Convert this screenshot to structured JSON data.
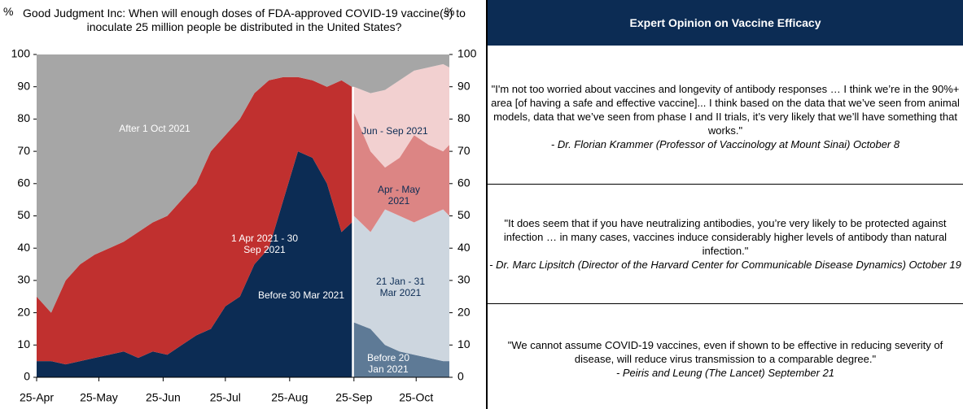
{
  "chart_data": {
    "type": "area",
    "title": "Good Judgment Inc: When will enough doses of FDA-approved COVID-19 vaccine(s) to inoculate 25 million people be distributed in the United States?",
    "y_label": "%",
    "y2_label": "%",
    "x": [
      "25-Apr",
      "2-May",
      "9-May",
      "16-May",
      "23-May",
      "30-May",
      "6-Jun",
      "13-Jun",
      "20-Jun",
      "27-Jun",
      "4-Jul",
      "11-Jul",
      "18-Jul",
      "25-Jul",
      "1-Aug",
      "8-Aug",
      "15-Aug",
      "22-Aug",
      "29-Aug",
      "5-Sep",
      "12-Sep",
      "19-Sep",
      "24-Sep",
      "25-Sep",
      "3-Oct",
      "10-Oct",
      "17-Oct",
      "24-Oct",
      "31-Oct",
      "7-Nov",
      "10-Nov"
    ],
    "xlim": [
      "25-Apr",
      "10-Nov"
    ],
    "xticks": [
      "25-Apr",
      "25-May",
      "25-Jun",
      "25-Jul",
      "25-Aug",
      "25-Sep",
      "25-Oct"
    ],
    "ylim": [
      0,
      100
    ],
    "yticks": [
      0,
      10,
      20,
      30,
      40,
      50,
      60,
      70,
      80,
      90,
      100
    ],
    "y2lim": [
      0,
      100
    ],
    "y2ticks": [
      0,
      10,
      20,
      30,
      40,
      50,
      60,
      70,
      80,
      90,
      100
    ],
    "series": [
      {
        "name": "Before 30 Mar 2021",
        "color": "#0c2c54",
        "values": [
          5,
          5,
          4,
          5,
          6,
          7,
          8,
          6,
          8,
          7,
          10,
          13,
          15,
          22,
          25,
          35,
          40,
          55,
          70,
          68,
          60,
          45,
          48,
          null,
          null,
          null,
          null,
          null,
          null,
          null,
          null
        ]
      },
      {
        "name": "1 Apr 2021 - 30 Sep 2021",
        "color": "#c0302f",
        "values": [
          20,
          15,
          26,
          30,
          32,
          33,
          34,
          39,
          40,
          43,
          45,
          47,
          55,
          53,
          55,
          53,
          52,
          38,
          23,
          24,
          30,
          47,
          42,
          null,
          null,
          null,
          null,
          null,
          null,
          null,
          null
        ]
      },
      {
        "name": "Before 20 Jan 2021",
        "color": "#5e7a96",
        "values": [
          null,
          null,
          null,
          null,
          null,
          null,
          null,
          null,
          null,
          null,
          null,
          null,
          null,
          null,
          null,
          null,
          null,
          null,
          null,
          null,
          null,
          null,
          null,
          17,
          15,
          10,
          8,
          7,
          6,
          5,
          5
        ]
      },
      {
        "name": "21 Jan - 31 Mar 2021",
        "color": "#cdd6df",
        "values": [
          null,
          null,
          null,
          null,
          null,
          null,
          null,
          null,
          null,
          null,
          null,
          null,
          null,
          null,
          null,
          null,
          null,
          null,
          null,
          null,
          null,
          null,
          null,
          33,
          30,
          42,
          42,
          41,
          44,
          47,
          45
        ]
      },
      {
        "name": "Apr - May 2021",
        "color": "#dc8584",
        "values": [
          null,
          null,
          null,
          null,
          null,
          null,
          null,
          null,
          null,
          null,
          null,
          null,
          null,
          null,
          null,
          null,
          null,
          null,
          null,
          null,
          null,
          null,
          null,
          32,
          25,
          13,
          18,
          27,
          22,
          18,
          22
        ]
      },
      {
        "name": "Jun - Sep 2021",
        "color": "#f2d0d0",
        "values": [
          null,
          null,
          null,
          null,
          null,
          null,
          null,
          null,
          null,
          null,
          null,
          null,
          null,
          null,
          null,
          null,
          null,
          null,
          null,
          null,
          null,
          null,
          null,
          8,
          18,
          24,
          24,
          20,
          24,
          27,
          24
        ]
      },
      {
        "name": "After 1 Oct 2021",
        "color": "#a6a6a6",
        "values": [
          75,
          80,
          70,
          65,
          62,
          60,
          58,
          55,
          52,
          50,
          45,
          40,
          30,
          25,
          20,
          12,
          8,
          7,
          7,
          8,
          10,
          8,
          10,
          10,
          12,
          11,
          8,
          5,
          4,
          3,
          4
        ]
      }
    ]
  },
  "panel": {
    "title": "Expert Opinion on Vaccine Efficacy",
    "quotes": [
      {
        "text": "\"I'm not too worried about vaccines and longevity of antibody responses … I think we’re in the 90%+ area [of having a safe and effective vaccine]... I think based on the data that we’ve seen from animal models, data that we’ve seen from phase I and II trials, it’s very likely that we’ll have something that works.\"",
        "author": "- Dr. Florian Krammer (Professor of Vaccinology at Mount Sinai) October 8"
      },
      {
        "text": "\"It does seem that if you have neutralizing antibodies, you’re very likely to be protected against infection … in many cases, vaccines induce considerably higher levels of antibody than natural infection.\"",
        "author": "- Dr. Marc Lipsitch (Director of the Harvard Center for Communicable Disease Dynamics) October 19"
      },
      {
        "text": "\"We cannot assume COVID-19 vaccines, even if shown to be effective in reducing severity of disease, will reduce virus transmission to a comparable degree.\"",
        "author": "- Peiris and Leung (The Lancet) September 21"
      }
    ]
  }
}
